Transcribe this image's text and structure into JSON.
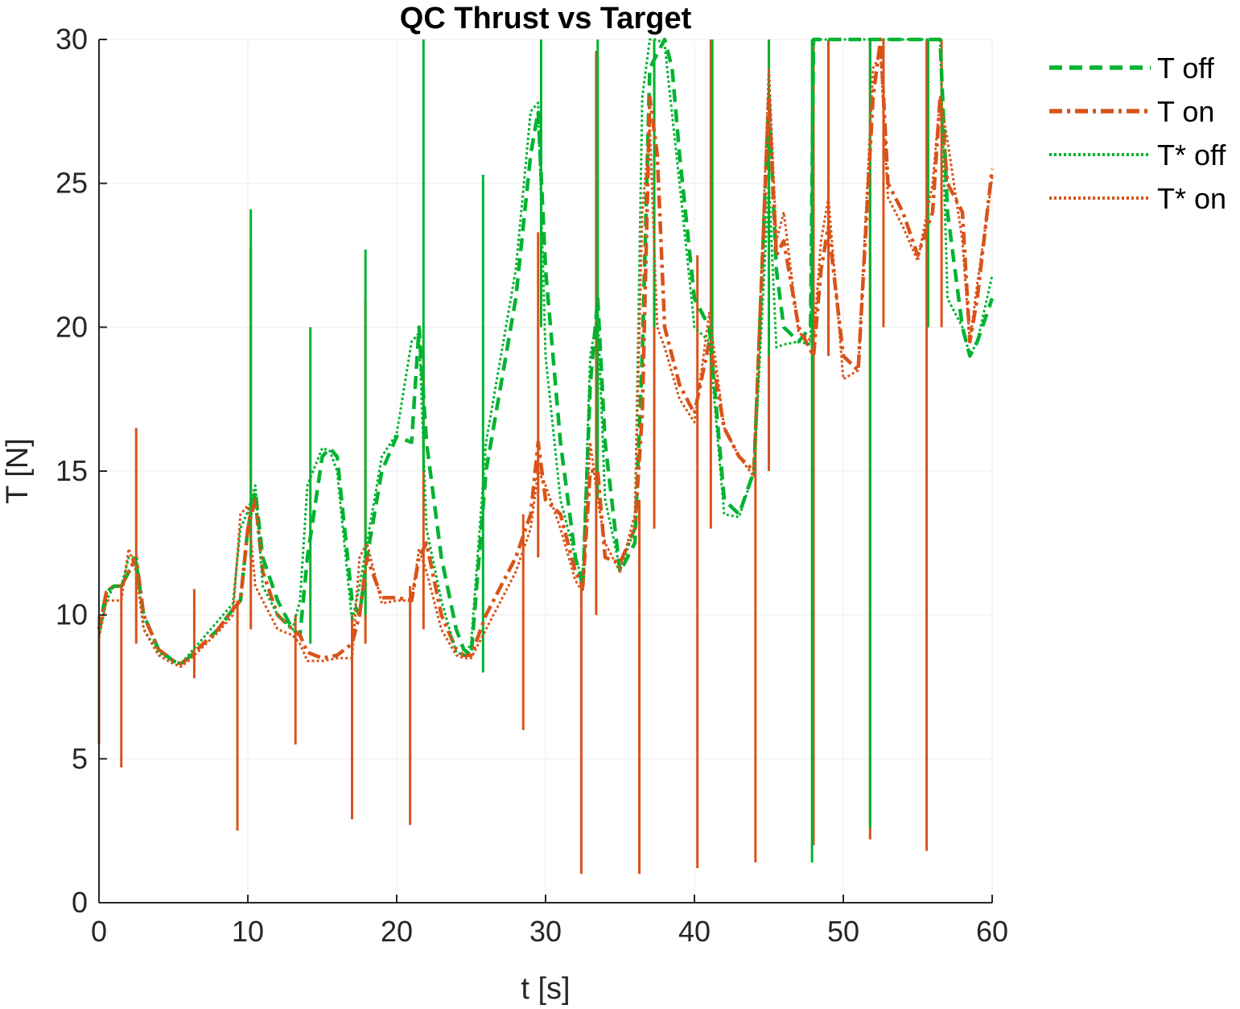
{
  "chart_data": {
    "type": "line",
    "title": "QC Thrust vs Target",
    "xlabel": "t [s]",
    "ylabel": "T [N]",
    "xlim": [
      0,
      60
    ],
    "ylim": [
      0,
      30
    ],
    "xticks": [
      "0",
      "10",
      "20",
      "30",
      "40",
      "50",
      "60"
    ],
    "yticks": [
      "0",
      "5",
      "10",
      "15",
      "20",
      "25",
      "30"
    ],
    "grid": true,
    "legend_position": "outside-top-right",
    "series": [
      {
        "name": "T off",
        "color": "#00b330",
        "style": "dashed",
        "x": [
          0,
          0.5,
          1,
          1.5,
          2,
          2.5,
          3,
          4,
          5,
          5.5,
          6,
          7,
          8,
          9,
          9.5,
          10,
          10.5,
          11,
          12,
          13,
          13.5,
          14,
          15,
          15.5,
          16,
          17,
          17.5,
          18,
          19,
          20,
          21,
          21.5,
          22,
          23,
          24,
          24.5,
          25,
          26,
          27,
          28,
          29,
          29.5,
          30,
          31,
          32,
          32.5,
          33,
          33.5,
          34,
          35,
          36,
          36.5,
          37,
          38,
          38.5,
          39,
          40,
          41,
          42,
          43,
          44,
          45,
          45.5,
          46,
          47,
          47.8,
          48,
          49,
          50,
          51,
          52,
          53,
          54,
          55,
          56,
          56.5,
          57,
          58,
          58.5,
          59,
          60
        ],
        "y": [
          9.5,
          10.8,
          11,
          11,
          11.5,
          11.8,
          10,
          8.8,
          8.4,
          8.3,
          8.5,
          9,
          9.5,
          10.2,
          10.5,
          13,
          14.3,
          12,
          10.5,
          9.5,
          9.3,
          12,
          15.5,
          15.8,
          15.5,
          10.5,
          10,
          12,
          15,
          16.2,
          16,
          20,
          16,
          12,
          9.5,
          8.8,
          8.6,
          15,
          18,
          21,
          26,
          27.5,
          22,
          16,
          12,
          11,
          18,
          21,
          16,
          11.5,
          12.5,
          19,
          29,
          30,
          29,
          26,
          21,
          20,
          14,
          13.5,
          15,
          28,
          22,
          20,
          19.5,
          20,
          30,
          30,
          30,
          30,
          30,
          30,
          30,
          30,
          30,
          30,
          24,
          20,
          19,
          19.5,
          21
        ]
      },
      {
        "name": "T on",
        "color": "#d95319",
        "style": "dashdot",
        "x": [
          0,
          0.5,
          1,
          1.5,
          2,
          2.5,
          3,
          4,
          5,
          5.5,
          6,
          7,
          8,
          9,
          9.5,
          10,
          10.5,
          11,
          12,
          13,
          13.5,
          14,
          15,
          16,
          17,
          17.5,
          18,
          19,
          20,
          21,
          21.5,
          22,
          23,
          24,
          24.5,
          25,
          26,
          27,
          28,
          29,
          29.5,
          30,
          31,
          32,
          32.5,
          33,
          33.5,
          34,
          35,
          36,
          36.5,
          37,
          37.5,
          38,
          39,
          40,
          41,
          42,
          43,
          44,
          45,
          45.5,
          46,
          47,
          48,
          48.5,
          49,
          50,
          51,
          52,
          52.5,
          53,
          54,
          55,
          56,
          56.5,
          57,
          58,
          58.5,
          59,
          60
        ],
        "y": [
          9.5,
          10.8,
          11,
          11,
          11.5,
          12,
          10,
          8.8,
          8.4,
          8.3,
          8.5,
          9,
          9.5,
          10.2,
          10.5,
          13,
          14,
          11.5,
          10,
          9.5,
          9.3,
          8.7,
          8.5,
          8.6,
          9,
          10,
          12,
          10.6,
          10.6,
          10.5,
          12,
          12.5,
          10,
          8.8,
          8.6,
          8.6,
          10,
          11,
          12,
          13.5,
          16,
          14,
          13.5,
          11.5,
          11,
          15,
          15,
          12,
          11.8,
          13,
          17,
          28,
          26,
          20,
          18,
          17,
          19.5,
          16.5,
          15.5,
          15,
          28,
          22.5,
          23,
          20,
          19,
          22,
          23.5,
          19,
          18.5,
          28,
          30,
          25,
          24,
          22.5,
          24,
          28,
          25,
          24,
          19.5,
          21,
          25.5
        ]
      },
      {
        "name": "T* off",
        "color": "#00b330",
        "style": "dotted",
        "x": [
          0,
          0.5,
          1,
          1.5,
          2,
          2.5,
          3,
          4,
          5,
          5.5,
          6,
          7,
          8,
          9,
          9.5,
          10,
          10.5,
          11,
          12,
          13,
          13.5,
          14,
          15,
          15.5,
          16,
          17,
          17.5,
          18,
          19,
          20,
          21,
          21.5,
          22,
          23,
          24,
          24.5,
          25,
          26,
          27,
          28,
          29,
          29.5,
          30,
          31,
          32,
          32.5,
          33,
          33.5,
          34,
          35,
          36,
          36.5,
          37,
          37.5,
          38,
          39,
          40,
          41,
          42,
          43,
          44,
          45,
          45.5,
          46,
          47,
          47.8,
          48,
          49,
          50,
          51,
          52,
          53,
          54,
          55,
          56,
          56.5,
          57,
          58,
          58.5,
          59,
          60
        ],
        "y": [
          9.3,
          10.5,
          11,
          11,
          12,
          12,
          9.5,
          8.7,
          8.4,
          8.3,
          8.6,
          9.2,
          9.8,
          10.4,
          13,
          13.6,
          14.5,
          11,
          10,
          9.5,
          10.5,
          14.5,
          15.8,
          15.7,
          15,
          9.8,
          11,
          12.5,
          15.5,
          16.3,
          19.5,
          19.8,
          13,
          10.5,
          8.7,
          8.6,
          9,
          16,
          19,
          22,
          27.5,
          27.8,
          19,
          14,
          12,
          11.2,
          19,
          20.5,
          14,
          11.6,
          13,
          28,
          30,
          30,
          29.8,
          25,
          20,
          19.5,
          13.5,
          13.4,
          15,
          25,
          19.3,
          19.4,
          19.5,
          19.4,
          30,
          30,
          30,
          30,
          30,
          30,
          30,
          30,
          30,
          30,
          21,
          20,
          19,
          19.5,
          21.8
        ]
      },
      {
        "name": "T* on",
        "color": "#d95319",
        "style": "dotted",
        "x": [
          0,
          0.5,
          1,
          1.5,
          2,
          2.5,
          3,
          4,
          5,
          5.5,
          6,
          7,
          8,
          9,
          9.5,
          10,
          10.5,
          11,
          12,
          13,
          13.5,
          14,
          15,
          16,
          17,
          17.5,
          18,
          19,
          20,
          21,
          21.5,
          22,
          23,
          24,
          24.5,
          25,
          26,
          27,
          28,
          29,
          29.5,
          30,
          31,
          32,
          32.5,
          33,
          33.5,
          34,
          35,
          36,
          36.5,
          37,
          37.5,
          38,
          39,
          40,
          41,
          42,
          43,
          44,
          45,
          45.5,
          46,
          47,
          48,
          48.5,
          49,
          50,
          51,
          52,
          52.5,
          53,
          54,
          55,
          56,
          56.5,
          57,
          58,
          58.5,
          59,
          60
        ],
        "y": [
          9.2,
          10.5,
          10.5,
          10.5,
          12.3,
          11.5,
          9.5,
          8.6,
          8.3,
          8.2,
          8.4,
          8.9,
          9.4,
          10,
          13.5,
          13.8,
          11,
          10.5,
          9.5,
          9.3,
          9,
          8.4,
          8.4,
          8.5,
          8.5,
          12,
          12.5,
          10.4,
          10.5,
          10.5,
          12.3,
          11.5,
          9.5,
          8.6,
          8.5,
          8.5,
          9.5,
          10.5,
          11.5,
          13,
          15,
          14.5,
          13,
          11.2,
          10.8,
          16,
          14,
          12.5,
          11.5,
          13.5,
          24,
          27,
          20,
          19.3,
          17.5,
          16.7,
          20.5,
          16.5,
          15.5,
          14.8,
          29,
          23,
          24,
          19.8,
          19.5,
          23,
          24.5,
          18.2,
          18.5,
          29,
          29.5,
          24.5,
          23.5,
          22.3,
          25,
          28,
          26.5,
          23,
          19.5,
          21.5,
          25.2
        ]
      }
    ],
    "spikes": [
      {
        "series": "T on",
        "x": [
          0,
          1.5,
          2.5,
          6.4,
          9.3,
          10.2,
          13.2,
          17,
          17.9,
          20.9,
          21.8,
          28.5,
          29.5,
          32.4,
          33.4,
          36.3,
          37.3,
          40.2,
          41.1,
          44.1,
          45,
          48,
          49,
          51.8,
          52.7,
          55.6,
          56.6
        ],
        "lo": [
          5.5,
          4.7,
          9,
          7.8,
          2.5,
          9.5,
          5.5,
          2.9,
          9,
          2.7,
          9.5,
          6,
          12,
          1,
          10,
          1,
          13,
          1.2,
          13,
          1.4,
          15,
          2,
          19,
          2.2,
          20,
          1.8,
          20
        ],
        "hi": [
          10,
          11,
          16.5,
          10.9,
          10.5,
          22.8,
          10,
          10,
          21,
          11,
          19,
          13.5,
          23.3,
          11.5,
          29.6,
          14,
          29.5,
          22.5,
          30,
          16,
          30,
          30,
          30,
          30,
          30,
          30,
          30
        ]
      },
      {
        "series": "T off",
        "x": [
          10.2,
          14.2,
          17.9,
          21.8,
          25.8,
          29.7,
          33.5,
          37.3,
          41.2,
          45,
          47.9,
          51.8,
          55.7
        ],
        "lo": [
          12,
          9,
          10,
          15,
          8,
          20,
          14,
          20,
          19,
          19,
          1.4,
          2.6,
          20
        ],
        "hi": [
          24.1,
          20,
          22.7,
          30,
          25.3,
          30,
          30,
          30,
          30,
          30,
          30,
          30,
          30
        ]
      }
    ]
  }
}
